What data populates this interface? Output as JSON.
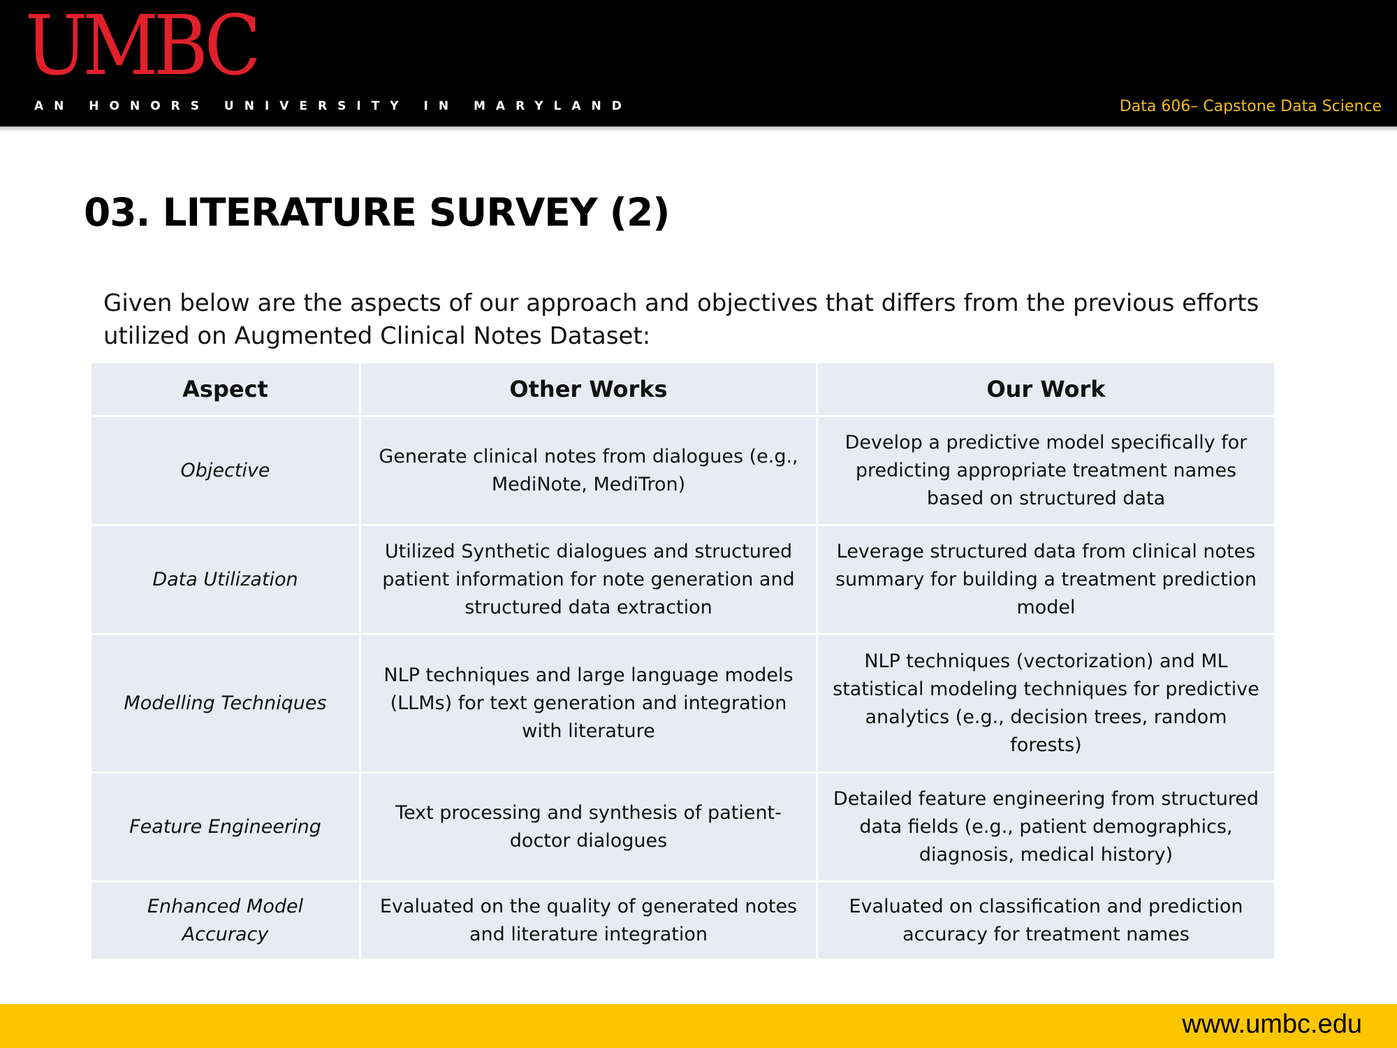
{
  "header": {
    "logo_text": "UMBC",
    "tagline": "AN HONORS UNIVERSITY IN MARYLAND",
    "course": "Data 606– Capstone Data Science"
  },
  "slide": {
    "title": "03. LITERATURE SURVEY (2)",
    "intro": "Given below are the aspects of our approach and objectives that differs from the previous efforts utilized on Augmented Clinical Notes Dataset:"
  },
  "table": {
    "headers": [
      "Aspect",
      "Other Works",
      "Our Work"
    ],
    "rows": [
      {
        "aspect": "Objective",
        "other": "Generate clinical notes from dialogues (e.g., MediNote, MediTron)",
        "ours": "Develop a predictive model specifically for predicting appropriate treatment names based on structured data"
      },
      {
        "aspect": "Data Utilization",
        "other": "Utilized Synthetic dialogues and structured patient information for note generation and structured data extraction",
        "ours": "Leverage structured data from clinical notes summary  for building a treatment prediction model"
      },
      {
        "aspect": "Modelling Techniques",
        "other": "NLP techniques and large language models (LLMs) for text generation and integration with literature",
        "ours": "NLP techniques (vectorization) and ML statistical modeling techniques for predictive analytics (e.g., decision trees, random forests)"
      },
      {
        "aspect": "Feature Engineering",
        "other": "Text processing and synthesis of  patient-doctor dialogues",
        "ours": "Detailed feature engineering from structured data fields (e.g., patient demographics, diagnosis, medical history)"
      },
      {
        "aspect": "Enhanced Model Accuracy",
        "other": "Evaluated on the quality of generated notes and literature integration",
        "ours": "Evaluated on classification and prediction accuracy for treatment names"
      }
    ]
  },
  "footer": {
    "url": "www.umbc.edu"
  }
}
